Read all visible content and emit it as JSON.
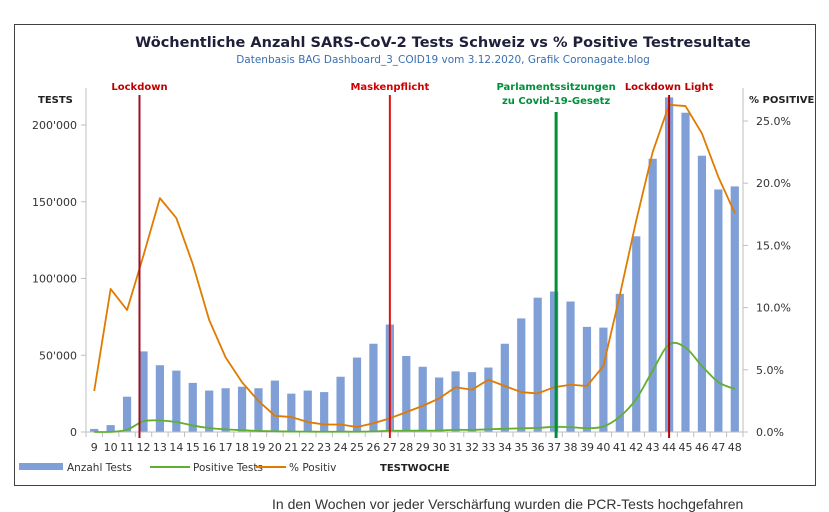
{
  "chart_data": {
    "type": "bar",
    "title": "Wöchentliche Anzahl SARS-CoV-2 Tests Schweiz vs % Positive Testresultate",
    "subtitle": "Datenbasis BAG Dashboard_3_COID19 vom 3.12.2020, Grafik Coronagate.blog",
    "xlabel": "TESTWOCHE",
    "ylabel_left": "TESTS",
    "ylabel_right": "% POSITIVE",
    "ylim_left": [
      0,
      200000
    ],
    "ylim_right": [
      0,
      25
    ],
    "y_ticks_left": [
      "0",
      "50'000",
      "100'000",
      "150'000",
      "200'000"
    ],
    "y_tick_values_left": [
      0,
      50000,
      100000,
      150000,
      200000
    ],
    "y_ticks_right": [
      "0.0%",
      "5.0%",
      "10.0%",
      "15.0%",
      "20.0%",
      "25.0%"
    ],
    "y_tick_values_right": [
      0,
      5,
      10,
      15,
      20,
      25
    ],
    "categories": [
      "9",
      "10",
      "11",
      "12",
      "13",
      "14",
      "15",
      "16",
      "17",
      "18",
      "19",
      "20",
      "21",
      "22",
      "23",
      "24",
      "25",
      "26",
      "27",
      "28",
      "29",
      "30",
      "31",
      "32",
      "33",
      "34",
      "35",
      "36",
      "37",
      "38",
      "39",
      "40",
      "41",
      "42",
      "43",
      "44",
      "45",
      "46",
      "47",
      "48"
    ],
    "series": [
      {
        "name": "Anzahl Tests",
        "type": "bar",
        "axis": "left",
        "color": "#7f9fd6",
        "values": [
          2000,
          4500,
          23000,
          52500,
          43500,
          40000,
          32000,
          27000,
          28500,
          29500,
          28500,
          33500,
          25000,
          27000,
          26000,
          36000,
          48500,
          57500,
          70000,
          49500,
          42500,
          35500,
          39500,
          39000,
          42000,
          57500,
          74000,
          87500,
          91500,
          85000,
          68500,
          68000,
          90000,
          127500,
          178000,
          218000,
          208000,
          180000,
          158000,
          160000
        ]
      },
      {
        "name": "Positive Tests",
        "type": "line",
        "axis": "left",
        "color": "#5fb030",
        "values": [
          0,
          100,
          1500,
          7000,
          7500,
          6500,
          4200,
          2600,
          1700,
          1200,
          700,
          450,
          300,
          220,
          160,
          200,
          190,
          400,
          800,
          800,
          900,
          950,
          1400,
          1350,
          1800,
          2100,
          2400,
          2700,
          3300,
          3200,
          2500,
          3600,
          10000,
          21500,
          40000,
          57000,
          55000,
          43000,
          32500,
          28000
        ]
      },
      {
        "name": "% Positiv",
        "type": "line",
        "axis": "right",
        "color": "#e07b00",
        "values": [
          3.3,
          11.5,
          9.8,
          14.2,
          18.8,
          17.2,
          13.5,
          9.0,
          6.0,
          4.0,
          2.5,
          1.3,
          1.2,
          0.8,
          0.6,
          0.6,
          0.4,
          0.7,
          1.1,
          1.6,
          2.1,
          2.7,
          3.6,
          3.4,
          4.2,
          3.7,
          3.2,
          3.1,
          3.6,
          3.8,
          3.7,
          5.3,
          11.0,
          17.0,
          22.5,
          26.3,
          26.2,
          24.0,
          20.5,
          17.6
        ]
      }
    ],
    "annotations": [
      {
        "label": "Lockdown",
        "week": "12",
        "color": "#c00000",
        "line_color": "#a01020"
      },
      {
        "label": "Maskenpflicht",
        "week": "27",
        "color": "#d00000",
        "line_color": "#e01010"
      },
      {
        "label_lines": [
          "Parlamentssitzungen",
          "zu Covid-19-Gesetz"
        ],
        "week": "37",
        "color": "#00903a",
        "line_color": "#00903a"
      },
      {
        "label": "Lockdown Light",
        "week": "44",
        "color": "#c00000",
        "line_color": "#c00000"
      }
    ],
    "legend": {
      "position": "bottom-left",
      "entries": [
        "Anzahl Tests",
        "Positive Tests",
        "% Positiv"
      ]
    },
    "grid": false
  },
  "footer": {
    "text": "In den Wochen vor jeder Verschärfung wurden die PCR-Tests hochgefahren"
  }
}
